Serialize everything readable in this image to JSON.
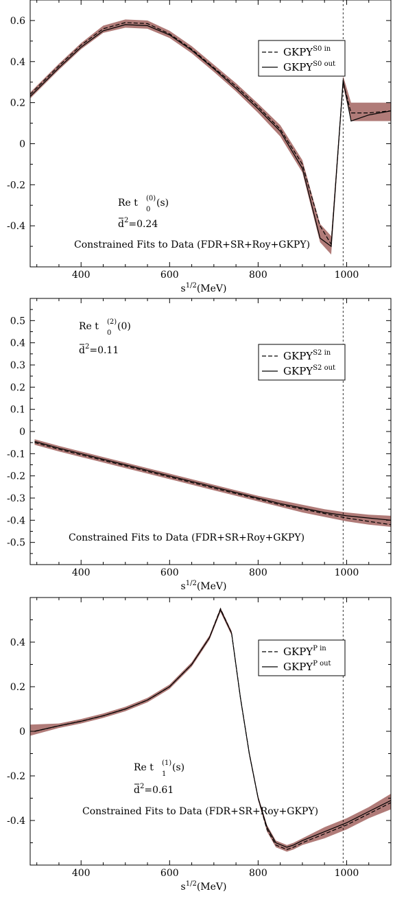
{
  "chart_data": [
    {
      "type": "line",
      "xlabel": "s",
      "xlabel_sup": "1/2",
      "xlabel_unit": "(MeV)",
      "xlim": [
        285,
        1100
      ],
      "ylim": [
        -0.6,
        0.7
      ],
      "x_ticks": [
        400,
        600,
        800,
        1000
      ],
      "y_ticks": [
        -0.4,
        -0.2,
        0,
        0.2,
        0.4,
        0.6
      ],
      "y_tick_labels": [
        "-0.4",
        "-0.2",
        "0",
        "0.2",
        "0.4",
        "0.6"
      ],
      "reference_line_x": 992,
      "annotations": [
        {
          "base": "Re t",
          "sup": "(0)",
          "sub": "0",
          "tail": "(s)"
        },
        {
          "base": "d",
          "sup": "2",
          "tail": "=0.24"
        },
        {
          "text": "Constrained Fits to Data (FDR+SR+Roy+GKPY)"
        }
      ],
      "legend": [
        {
          "base": "GKPY",
          "sup": "S0 in",
          "style": "dashed"
        },
        {
          "base": "GKPY",
          "sup": "S0 out",
          "style": "solid"
        }
      ],
      "legend_position": "top-right",
      "x": [
        285,
        350,
        400,
        450,
        500,
        550,
        600,
        650,
        700,
        750,
        800,
        850,
        900,
        940,
        965,
        992,
        1010,
        1050,
        1100
      ],
      "series": [
        {
          "name": "GKPY S0 in",
          "style": "dashed",
          "values": [
            0.24,
            0.38,
            0.48,
            0.56,
            0.59,
            0.585,
            0.535,
            0.46,
            0.37,
            0.28,
            0.18,
            0.07,
            -0.1,
            -0.4,
            -0.49,
            0.3,
            0.15,
            0.15,
            0.16
          ]
        },
        {
          "name": "GKPY S0 out",
          "style": "solid",
          "values": [
            0.23,
            0.37,
            0.47,
            0.55,
            0.58,
            0.575,
            0.53,
            0.455,
            0.365,
            0.27,
            0.17,
            0.06,
            -0.12,
            -0.46,
            -0.5,
            0.31,
            0.11,
            0.14,
            0.16
          ]
        }
      ],
      "band": {
        "x": [
          285,
          350,
          400,
          450,
          500,
          550,
          600,
          650,
          700,
          750,
          800,
          850,
          900,
          940,
          965,
          992,
          1010,
          1050,
          1100
        ],
        "lower": [
          0.22,
          0.36,
          0.46,
          0.54,
          0.565,
          0.56,
          0.515,
          0.44,
          0.35,
          0.255,
          0.15,
          0.035,
          -0.14,
          -0.48,
          -0.54,
          0.28,
          0.11,
          0.11,
          0.11
        ],
        "upper": [
          0.25,
          0.39,
          0.49,
          0.575,
          0.605,
          0.6,
          0.55,
          0.475,
          0.385,
          0.295,
          0.195,
          0.09,
          -0.08,
          -0.39,
          -0.45,
          0.33,
          0.2,
          0.2,
          0.2
        ]
      }
    },
    {
      "type": "line",
      "xlabel": "s",
      "xlabel_sup": "1/2",
      "xlabel_unit": "(MeV)",
      "xlim": [
        285,
        1100
      ],
      "ylim": [
        -0.6,
        0.6
      ],
      "x_ticks": [
        400,
        600,
        800,
        1000
      ],
      "y_ticks": [
        -0.5,
        -0.4,
        -0.3,
        -0.2,
        -0.1,
        0,
        0.1,
        0.2,
        0.3,
        0.4,
        0.5
      ],
      "y_tick_labels": [
        "-0.5",
        "-0.4",
        "-0.3",
        "-0.2",
        "-0.1",
        "0",
        "0.1",
        "0.2",
        "0.3",
        "0.4",
        "0.5"
      ],
      "reference_line_x": 992,
      "annotations": [
        {
          "base": "Re t",
          "sup": "(2)",
          "sub": "0",
          "tail": "(0)"
        },
        {
          "base": "d",
          "sup": "2",
          "tail": "=0.11"
        },
        {
          "text": "Constrained Fits to Data (FDR+SR+Roy+GKPY)"
        }
      ],
      "legend": [
        {
          "base": "GKPY",
          "sup": "S2 in",
          "style": "dashed"
        },
        {
          "base": "GKPY",
          "sup": "S2 out",
          "style": "solid"
        }
      ],
      "legend_position": "top-right",
      "x": [
        295,
        350,
        400,
        450,
        500,
        550,
        600,
        650,
        700,
        750,
        800,
        850,
        900,
        950,
        1000,
        1050,
        1100
      ],
      "series": [
        {
          "name": "GKPY S2 in",
          "style": "dashed",
          "values": [
            -0.05,
            -0.08,
            -0.105,
            -0.13,
            -0.155,
            -0.18,
            -0.205,
            -0.23,
            -0.255,
            -0.28,
            -0.305,
            -0.33,
            -0.35,
            -0.37,
            -0.39,
            -0.405,
            -0.42
          ]
        },
        {
          "name": "GKPY S2 out",
          "style": "solid",
          "values": [
            -0.045,
            -0.075,
            -0.1,
            -0.125,
            -0.15,
            -0.175,
            -0.2,
            -0.225,
            -0.25,
            -0.275,
            -0.3,
            -0.325,
            -0.345,
            -0.365,
            -0.38,
            -0.39,
            -0.4
          ]
        }
      ],
      "band": {
        "x": [
          295,
          350,
          400,
          450,
          500,
          550,
          600,
          650,
          700,
          750,
          800,
          850,
          900,
          950,
          1000,
          1050,
          1100
        ],
        "lower": [
          -0.06,
          -0.09,
          -0.115,
          -0.14,
          -0.165,
          -0.19,
          -0.215,
          -0.24,
          -0.265,
          -0.29,
          -0.315,
          -0.34,
          -0.365,
          -0.385,
          -0.405,
          -0.42,
          -0.43
        ],
        "upper": [
          -0.035,
          -0.065,
          -0.09,
          -0.115,
          -0.14,
          -0.165,
          -0.19,
          -0.215,
          -0.24,
          -0.265,
          -0.29,
          -0.31,
          -0.33,
          -0.35,
          -0.365,
          -0.375,
          -0.38
        ]
      }
    },
    {
      "type": "line",
      "xlabel": "s",
      "xlabel_sup": "1/2",
      "xlabel_unit": "(MeV)",
      "xlim": [
        285,
        1100
      ],
      "ylim": [
        -0.6,
        0.6
      ],
      "x_ticks": [
        400,
        600,
        800,
        1000
      ],
      "y_ticks": [
        -0.4,
        -0.2,
        0,
        0.2,
        0.4
      ],
      "y_tick_labels": [
        "-0.4",
        "-0.2",
        "0",
        "0.2",
        "0.4"
      ],
      "reference_line_x": 992,
      "annotations": [
        {
          "base": "Re t",
          "sup": "(1)",
          "sub": "1",
          "tail": "(s)"
        },
        {
          "base": "d",
          "sup": "2",
          "tail": "=0.61"
        },
        {
          "text": "Constrained Fits to Data (FDR+SR+Roy+GKPY)"
        }
      ],
      "legend": [
        {
          "base": "GKPY",
          "sup": "P in",
          "style": "dashed"
        },
        {
          "base": "GKPY",
          "sup": "P out",
          "style": "solid"
        }
      ],
      "legend_position": "top-right",
      "x": [
        295,
        350,
        400,
        450,
        500,
        550,
        600,
        650,
        690,
        715,
        740,
        760,
        780,
        800,
        820,
        840,
        865,
        880,
        900,
        950,
        1000,
        1050,
        1100
      ],
      "series": [
        {
          "name": "GKPY P in",
          "style": "dashed",
          "values": [
            0.0,
            0.025,
            0.045,
            0.07,
            0.1,
            0.14,
            0.2,
            0.3,
            0.42,
            0.55,
            0.44,
            0.15,
            -0.1,
            -0.3,
            -0.44,
            -0.51,
            -0.53,
            -0.52,
            -0.5,
            -0.46,
            -0.42,
            -0.37,
            -0.32
          ]
        },
        {
          "name": "GKPY P out",
          "style": "solid",
          "values": [
            0.0,
            0.025,
            0.045,
            0.07,
            0.1,
            0.14,
            0.2,
            0.3,
            0.42,
            0.545,
            0.44,
            0.15,
            -0.1,
            -0.3,
            -0.43,
            -0.5,
            -0.52,
            -0.51,
            -0.49,
            -0.45,
            -0.41,
            -0.36,
            -0.31
          ]
        }
      ],
      "band": {
        "x": [
          285,
          350,
          400,
          450,
          500,
          550,
          600,
          650,
          690,
          715,
          740,
          760,
          780,
          800,
          820,
          840,
          865,
          880,
          900,
          950,
          1000,
          1050,
          1100
        ],
        "lower": [
          -0.02,
          0.015,
          0.035,
          0.06,
          0.09,
          0.13,
          0.19,
          0.29,
          0.41,
          0.535,
          0.43,
          0.14,
          -0.11,
          -0.31,
          -0.45,
          -0.52,
          -0.54,
          -0.53,
          -0.51,
          -0.48,
          -0.44,
          -0.39,
          -0.35
        ],
        "upper": [
          0.03,
          0.035,
          0.055,
          0.08,
          0.11,
          0.15,
          0.21,
          0.31,
          0.43,
          0.555,
          0.45,
          0.16,
          -0.09,
          -0.29,
          -0.42,
          -0.49,
          -0.51,
          -0.5,
          -0.48,
          -0.43,
          -0.39,
          -0.34,
          -0.28
        ]
      }
    }
  ]
}
